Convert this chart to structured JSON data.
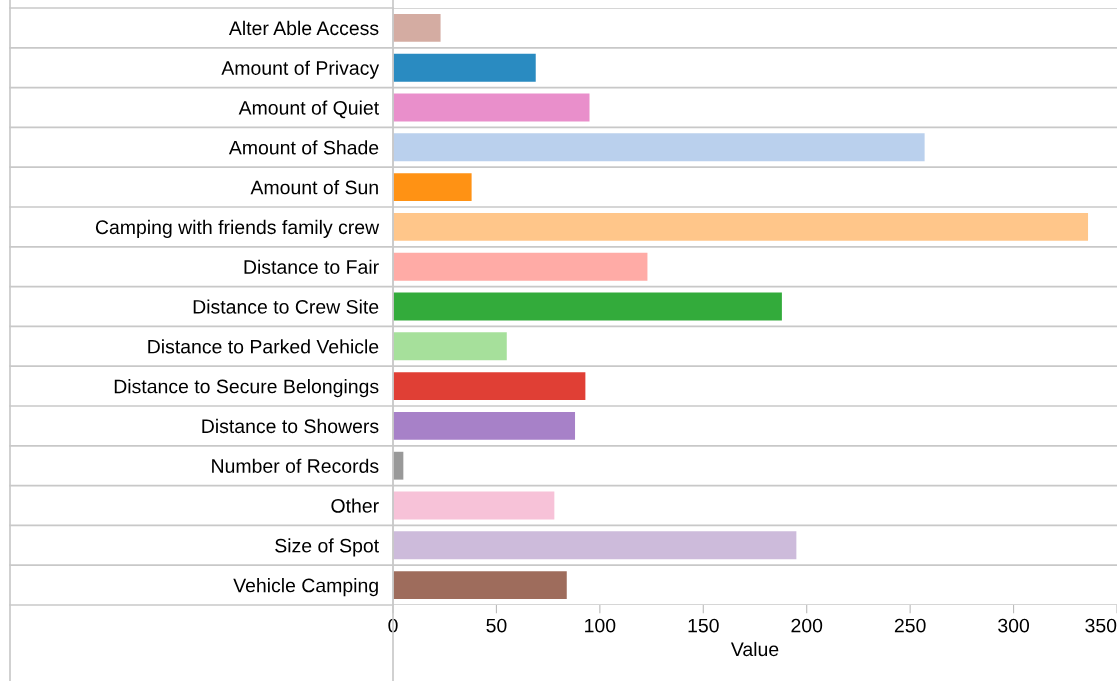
{
  "chart_data": {
    "type": "bar",
    "orientation": "horizontal",
    "xlabel": "Value",
    "categories": [
      "Alter Able Access",
      "Amount of Privacy",
      "Amount of Quiet",
      "Amount of Shade",
      "Amount of Sun",
      "Camping with friends family crew",
      "Distance to Fair",
      "Distance to Crew Site",
      "Distance to Parked Vehicle",
      "Distance to Secure Belongings",
      "Distance to Showers",
      "Number of Records",
      "Other",
      "Size of Spot",
      "Vehicle Camping"
    ],
    "values": [
      23,
      69,
      95,
      257,
      38,
      336,
      123,
      188,
      55,
      93,
      88,
      5,
      78,
      195,
      84
    ],
    "colors": [
      "#d4aca2",
      "#2a8bc1",
      "#e98fcb",
      "#bad0ed",
      "#ff9214",
      "#ffc68a",
      "#ffaba6",
      "#33ab3b",
      "#a6e09b",
      "#e03f35",
      "#a781c8",
      "#999999",
      "#f7c2d8",
      "#cdbbdb",
      "#9e6c5c"
    ],
    "xlim": [
      0,
      350
    ],
    "xticks": [
      0,
      50,
      100,
      150,
      200,
      250,
      300,
      350
    ],
    "grid": "y"
  }
}
